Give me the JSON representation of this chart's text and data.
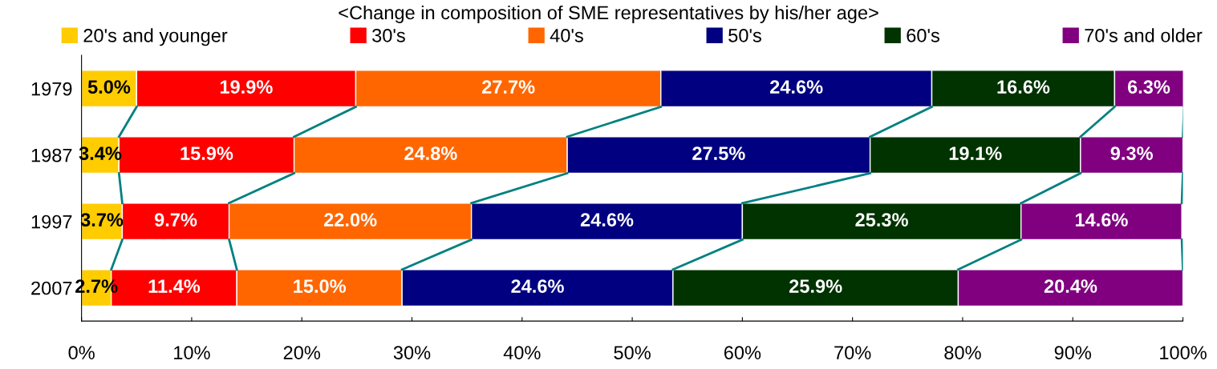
{
  "chart_data": {
    "type": "bar",
    "orientation": "horizontal",
    "stacked": true,
    "title": "<Change in composition of SME representatives by his/her age>",
    "categories": [
      "1979",
      "1987",
      "1997",
      "2007"
    ],
    "series": [
      {
        "name": "20's and younger",
        "color": "#ffcc00",
        "values": [
          5.0,
          3.4,
          3.7,
          2.7
        ],
        "value_labels": [
          "5.0%",
          "3.4%",
          "3.7%",
          "2.7%"
        ]
      },
      {
        "name": "30's",
        "color": "#ff0000",
        "values": [
          19.9,
          15.9,
          9.7,
          11.4
        ],
        "value_labels": [
          "19.9%",
          "15.9%",
          "9.7%",
          "11.4%"
        ]
      },
      {
        "name": "40's",
        "color": "#ff6600",
        "values": [
          27.7,
          24.8,
          22.0,
          15.0
        ],
        "value_labels": [
          "27.7%",
          "24.8%",
          "22.0%",
          "15.0%"
        ]
      },
      {
        "name": "50's",
        "color": "#000080",
        "values": [
          24.6,
          27.5,
          24.6,
          24.6
        ],
        "value_labels": [
          "24.6%",
          "27.5%",
          "24.6%",
          "24.6%"
        ]
      },
      {
        "name": "60's",
        "color": "#003300",
        "values": [
          16.6,
          19.1,
          25.3,
          25.9
        ],
        "value_labels": [
          "16.6%",
          "19.1%",
          "25.3%",
          "25.9%"
        ]
      },
      {
        "name": "70's and older",
        "color": "#800080",
        "values": [
          6.3,
          9.3,
          14.6,
          20.4
        ],
        "value_labels": [
          "6.3%",
          "9.3%",
          "14.6%",
          "20.4%"
        ]
      }
    ],
    "xlim": [
      0,
      100
    ],
    "xticks": [
      {
        "value": 0,
        "label": "0%"
      },
      {
        "value": 10,
        "label": "10%"
      },
      {
        "value": 20,
        "label": "20%"
      },
      {
        "value": 30,
        "label": "30%"
      },
      {
        "value": 40,
        "label": "40%"
      },
      {
        "value": 50,
        "label": "50%"
      },
      {
        "value": 60,
        "label": "60%"
      },
      {
        "value": 70,
        "label": "70%"
      },
      {
        "value": 80,
        "label": "80%"
      },
      {
        "value": 90,
        "label": "90%"
      },
      {
        "value": 100,
        "label": "100%"
      }
    ],
    "legend": "top",
    "grid": false
  }
}
